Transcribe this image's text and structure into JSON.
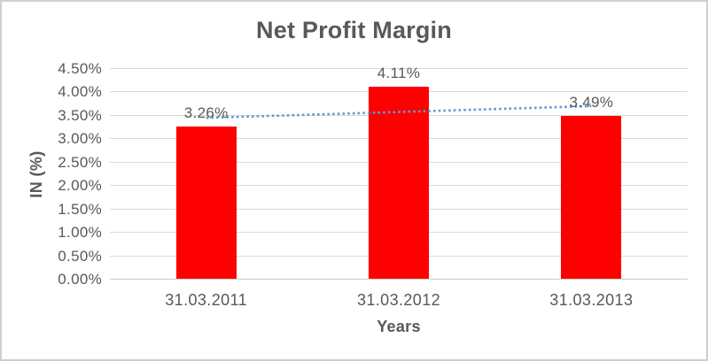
{
  "window": {
    "background": "#FFFFFF",
    "border_color": "#CFCFCF"
  },
  "chart_data": {
    "type": "bar",
    "title": "Net Profit Margin",
    "xlabel": "Years",
    "ylabel": "IN (%)",
    "categories": [
      "31.03.2011",
      "31.03.2012",
      "31.03.2013"
    ],
    "values": [
      3.26,
      4.11,
      3.49
    ],
    "data_labels": [
      "3.26%",
      "4.11%",
      "3.49%"
    ],
    "yticks": [
      "0.00%",
      "0.50%",
      "1.00%",
      "1.50%",
      "2.00%",
      "2.50%",
      "3.00%",
      "3.50%",
      "4.00%",
      "4.50%"
    ],
    "ylim": [
      0,
      4.5
    ],
    "grid": true,
    "legend": "none",
    "bar_color": "#FF0000",
    "text_color": "#595959",
    "gridline_color": "#D9D9D9",
    "axisline_color": "#CCCCCC",
    "trendline": {
      "type": "linear",
      "style": "dotted",
      "color": "#5B9BD5",
      "start_value": 3.44,
      "end_value": 3.69
    }
  }
}
